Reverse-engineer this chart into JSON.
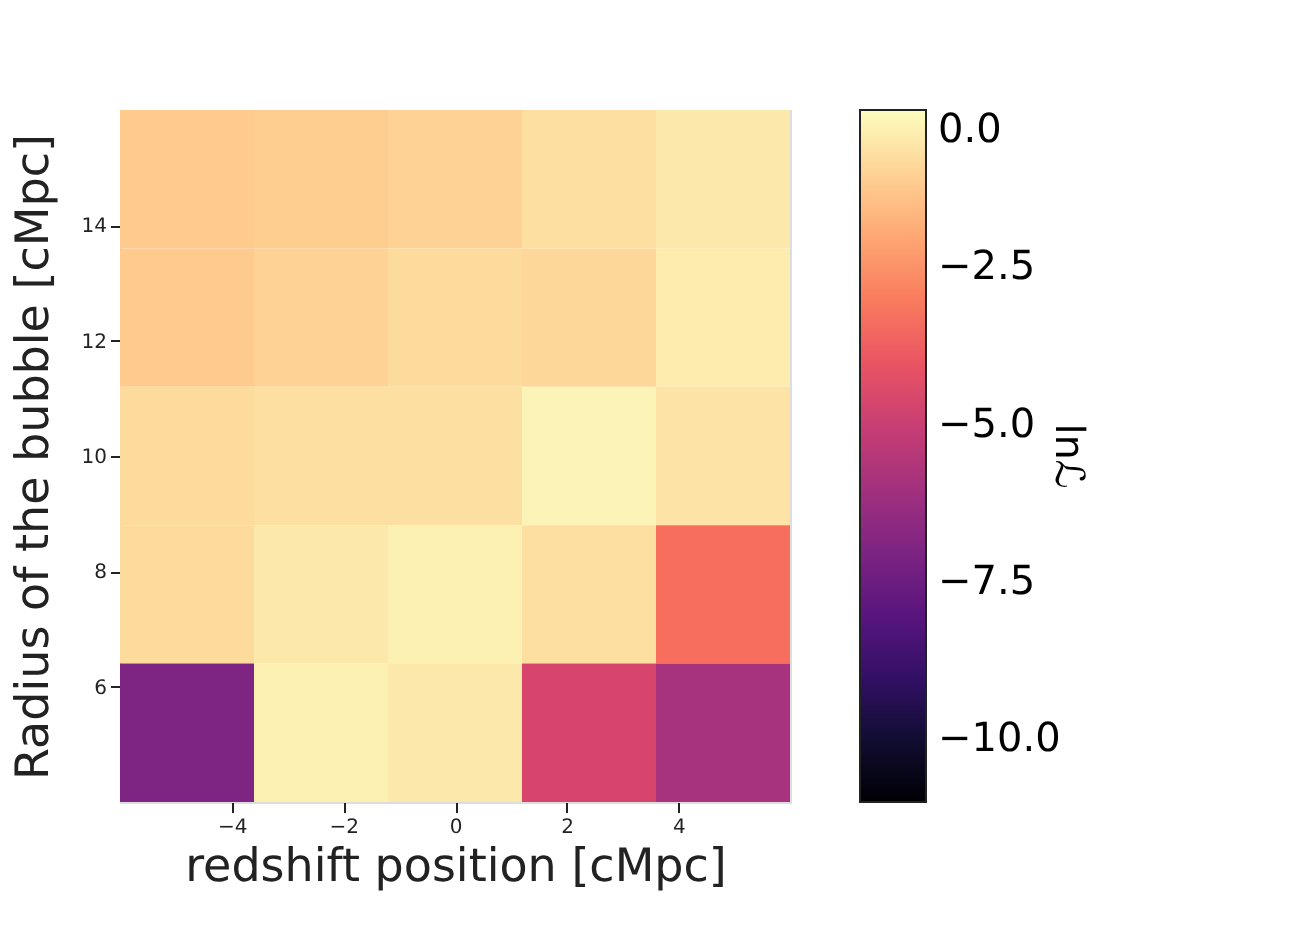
{
  "chart_data": {
    "type": "heatmap",
    "xlabel": "redshift position [cMpc]",
    "ylabel": "Radius of the bubble [cMpc]",
    "clabel": "lnℒ",
    "x": [
      -4.8,
      -2.4,
      0,
      2.4,
      4.8
    ],
    "y": [
      14.8,
      12.4,
      10,
      7.6,
      5.2
    ],
    "cells": [
      [
        -1.2,
        -1.1,
        -1.0,
        -0.7,
        -0.5
      ],
      [
        -1.2,
        -1.0,
        -0.8,
        -0.9,
        -0.4
      ],
      [
        -0.8,
        -0.7,
        -0.7,
        -0.2,
        -0.6
      ],
      [
        -0.8,
        -0.5,
        -0.3,
        -0.7,
        -3.3
      ],
      [
        -7.0,
        -0.3,
        -0.5,
        -4.6,
        -5.9
      ]
    ],
    "xlim": [
      -6,
      6
    ],
    "xticks": [
      -4,
      -2,
      0,
      2,
      4
    ],
    "ylim": [
      4,
      16
    ],
    "yticks": [
      6,
      8,
      10,
      12,
      14
    ],
    "clim": [
      -11,
      0
    ],
    "cticks": [
      {
        "value": 0,
        "label": "0.0"
      },
      {
        "value": -2.5,
        "label": "−2.5"
      },
      {
        "value": -5,
        "label": "−5.0"
      },
      {
        "value": -7.5,
        "label": "−7.5"
      },
      {
        "value": -10,
        "label": "−10.0"
      }
    ],
    "grid": false
  }
}
